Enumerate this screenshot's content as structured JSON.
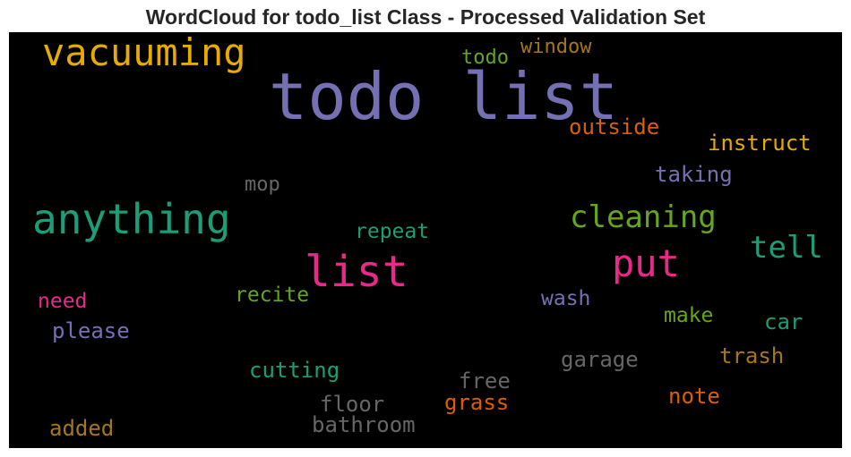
{
  "title": "WordCloud for todo_list Class - Processed Validation Set",
  "palette": {
    "teal": "#1b9e77",
    "orange": "#d95f02",
    "purple": "#7570b3",
    "pink": "#e7298a",
    "green": "#66a61e",
    "gold": "#e6ab02",
    "brown": "#a6761d",
    "gray": "#666666"
  },
  "words": [
    {
      "text": "todo list",
      "color": "purple"
    },
    {
      "text": "vacuuming",
      "color": "gold"
    },
    {
      "text": "anything",
      "color": "teal"
    },
    {
      "text": "list",
      "color": "pink"
    },
    {
      "text": "put",
      "color": "pink"
    },
    {
      "text": "cleaning",
      "color": "green"
    },
    {
      "text": "tell",
      "color": "teal"
    },
    {
      "text": "todo",
      "color": "green"
    },
    {
      "text": "window",
      "color": "brown"
    },
    {
      "text": "outside",
      "color": "orange"
    },
    {
      "text": "instruct",
      "color": "gold"
    },
    {
      "text": "taking",
      "color": "purple"
    },
    {
      "text": "mop",
      "color": "gray"
    },
    {
      "text": "repeat",
      "color": "teal"
    },
    {
      "text": "recite",
      "color": "green"
    },
    {
      "text": "need",
      "color": "pink"
    },
    {
      "text": "please",
      "color": "purple"
    },
    {
      "text": "wash",
      "color": "purple"
    },
    {
      "text": "make",
      "color": "green"
    },
    {
      "text": "car",
      "color": "teal"
    },
    {
      "text": "trash",
      "color": "brown"
    },
    {
      "text": "garage",
      "color": "gray"
    },
    {
      "text": "cutting",
      "color": "teal"
    },
    {
      "text": "free",
      "color": "gray"
    },
    {
      "text": "note",
      "color": "orange"
    },
    {
      "text": "floor",
      "color": "gray"
    },
    {
      "text": "grass",
      "color": "orange"
    },
    {
      "text": "bathroom",
      "color": "gray"
    },
    {
      "text": "added",
      "color": "brown"
    }
  ]
}
